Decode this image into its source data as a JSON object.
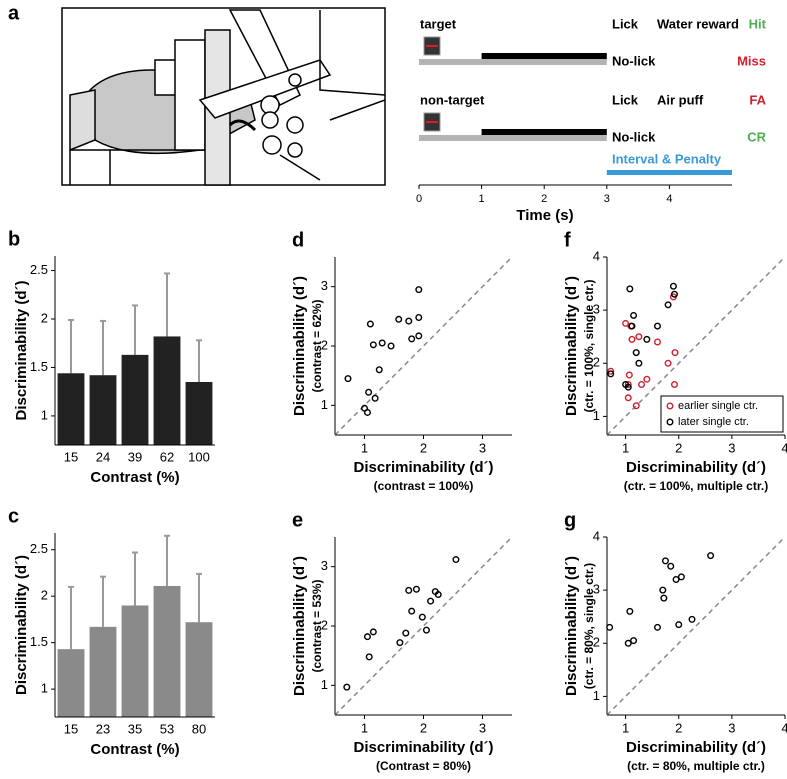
{
  "figure": {
    "panel_a": {
      "label": "a",
      "trials": [
        {
          "name": "target",
          "responses": [
            {
              "response": "Lick",
              "outcome": "Water reward",
              "result": "Hit",
              "color": "#4caf50"
            },
            {
              "response": "No-lick",
              "result": "Miss",
              "color": "#d0202e"
            }
          ]
        },
        {
          "name": "non-target",
          "responses": [
            {
              "response": "Lick",
              "outcome": "Air puff",
              "result": "FA",
              "color": "#d0202e"
            },
            {
              "response": "No-lick",
              "result": "CR",
              "color": "#4caf50"
            }
          ]
        }
      ],
      "stimulus": [
        0,
        3
      ],
      "response_window": [
        1,
        3
      ],
      "interval": {
        "label": "Interval & Penalty",
        "range": [
          3,
          5
        ],
        "color": "#3a9ad9"
      },
      "xlim": [
        0,
        5
      ],
      "xticks": [
        0,
        1,
        2,
        3,
        4
      ],
      "xlabel": "Time (s)"
    }
  },
  "chart_data": [
    {
      "panel": "b",
      "type": "bar",
      "categories": [
        "15",
        "24",
        "39",
        "62",
        "100"
      ],
      "values": [
        1.44,
        1.42,
        1.63,
        1.82,
        1.35
      ],
      "errors": [
        0.55,
        0.56,
        0.51,
        0.65,
        0.43
      ],
      "color": "#222222",
      "error_color": "#999999",
      "ylim": [
        0.7,
        2.65
      ],
      "yticks": [
        1,
        1.5,
        2,
        2.5
      ],
      "xlabel": "Contrast (%)",
      "ylabel": "Discriminability (d´)"
    },
    {
      "panel": "c",
      "type": "bar",
      "categories": [
        "15",
        "23",
        "35",
        "53",
        "80"
      ],
      "values": [
        1.43,
        1.67,
        1.9,
        2.11,
        1.72
      ],
      "errors": [
        0.67,
        0.54,
        0.57,
        0.54,
        0.52
      ],
      "color": "#8a8a8a",
      "error_color": "#999999",
      "ylim": [
        0.7,
        2.68
      ],
      "yticks": [
        1,
        1.5,
        2,
        2.5
      ],
      "xlabel": "Contrast (%)",
      "ylabel": "Discriminability (d´)"
    },
    {
      "panel": "d",
      "type": "scatter",
      "x": [
        0.72,
        1.0,
        1.05,
        1.07,
        1.18,
        1.1,
        1.15,
        1.25,
        1.3,
        1.45,
        1.58,
        1.75,
        1.8,
        1.92,
        1.92,
        1.92
      ],
      "y": [
        1.45,
        0.95,
        0.88,
        1.22,
        1.12,
        2.37,
        2.02,
        1.6,
        2.05,
        2.0,
        2.45,
        2.42,
        2.12,
        2.17,
        2.48,
        2.95
      ],
      "color": "#000000",
      "xlim": [
        0.5,
        3.5
      ],
      "ylim": [
        0.5,
        3.5
      ],
      "xticks": [
        1,
        2,
        3
      ],
      "yticks": [
        1,
        2,
        3
      ],
      "xlabel": "Discriminability (d´)",
      "xlabel_note": "(contrast = 100%)",
      "ylabel": "Discriminability (d´)",
      "ylabel_note": "(contrast = 62%)",
      "diagonal": true
    },
    {
      "panel": "e",
      "type": "scatter",
      "x": [
        0.7,
        1.05,
        1.08,
        1.15,
        1.6,
        1.7,
        1.75,
        1.8,
        1.88,
        1.98,
        2.05,
        2.12,
        2.2,
        2.25,
        2.55
      ],
      "y": [
        0.97,
        1.82,
        1.48,
        1.9,
        1.72,
        1.88,
        2.6,
        2.25,
        2.62,
        2.15,
        1.93,
        2.42,
        2.58,
        2.53,
        3.12
      ],
      "color": "#000000",
      "xlim": [
        0.5,
        3.5
      ],
      "ylim": [
        0.5,
        3.5
      ],
      "xticks": [
        1,
        2,
        3
      ],
      "yticks": [
        1,
        2,
        3
      ],
      "xlabel": "Discriminability (d´)",
      "xlabel_note": "(Contrast = 80%)",
      "ylabel": "Discriminability (d´)",
      "ylabel_note": "(contrast = 53%)",
      "diagonal": true
    },
    {
      "panel": "f",
      "type": "scatter",
      "series": [
        {
          "name": "earlier single ctr.",
          "color": "#d0202e",
          "x": [
            0.72,
            1.0,
            1.05,
            1.05,
            1.07,
            1.1,
            1.12,
            1.2,
            1.25,
            1.3,
            1.4,
            1.6,
            1.8,
            1.9,
            1.93,
            1.92
          ],
          "y": [
            1.85,
            2.75,
            1.35,
            1.6,
            1.78,
            2.7,
            2.45,
            1.2,
            2.5,
            1.6,
            1.7,
            2.4,
            2.0,
            3.25,
            2.2,
            1.6
          ]
        },
        {
          "name": "later single ctr.",
          "color": "#000000",
          "x": [
            0.72,
            1.0,
            1.05,
            1.08,
            1.12,
            1.15,
            1.25,
            1.4,
            1.6,
            1.8,
            1.9,
            1.92,
            1.2
          ],
          "y": [
            1.8,
            1.6,
            1.55,
            3.4,
            2.7,
            2.9,
            2.0,
            2.45,
            2.7,
            3.1,
            3.45,
            3.3,
            2.2
          ]
        }
      ],
      "legend": "lower right",
      "xlim": [
        0.65,
        4
      ],
      "ylim": [
        0.65,
        4
      ],
      "xticks": [
        1,
        2,
        3,
        4
      ],
      "yticks": [
        1,
        2,
        3,
        4
      ],
      "xlabel": "Discriminability (d´)",
      "xlabel_note": "(ctr. = 100%, multiple ctr.)",
      "ylabel": "Discriminability (d´)",
      "ylabel_note": "(ctr. = 100%, single ctr.)",
      "diagonal": true
    },
    {
      "panel": "g",
      "type": "scatter",
      "x": [
        0.7,
        1.05,
        1.08,
        1.15,
        1.6,
        1.7,
        1.72,
        1.75,
        1.85,
        1.95,
        2.0,
        2.05,
        2.25,
        2.6
      ],
      "y": [
        2.3,
        2.0,
        2.6,
        2.05,
        2.3,
        3.0,
        2.85,
        3.55,
        3.45,
        3.2,
        2.35,
        3.25,
        2.45,
        3.65
      ],
      "color": "#000000",
      "xlim": [
        0.65,
        4
      ],
      "ylim": [
        0.65,
        4
      ],
      "xticks": [
        1,
        2,
        3,
        4
      ],
      "yticks": [
        1,
        2,
        3,
        4
      ],
      "xlabel": "Discriminability (d´)",
      "xlabel_note": "(ctr. = 80%, multiple ctr.)",
      "ylabel": "Discriminability (d´)",
      "ylabel_note": "(ctr. = 80%, single ctr.)",
      "diagonal": true
    }
  ]
}
